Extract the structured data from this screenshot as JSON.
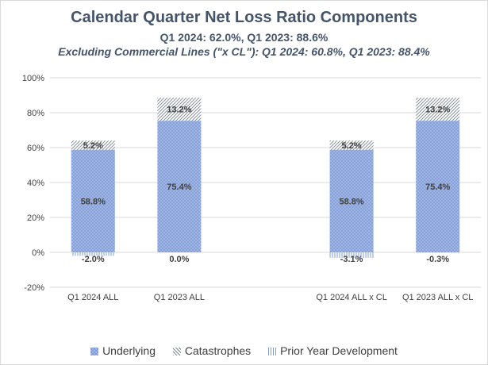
{
  "chart_data": {
    "type": "bar",
    "stacked": true,
    "title": "Calendar Quarter Net Loss Ratio Components",
    "subtitle": "Q1 2024: 62.0%, Q1 2023: 88.6%",
    "subtitle2": "Excluding Commercial Lines (\"x CL\"): Q1 2024: 60.8%, Q1 2023: 88.4%",
    "categories": [
      "Q1 2024 ALL",
      "Q1 2023 ALL",
      "",
      "Q1 2024 ALL x CL",
      "Q1 2023 ALL x CL"
    ],
    "series": [
      {
        "name": "Underlying",
        "values": [
          58.8,
          75.4,
          null,
          58.8,
          75.4
        ],
        "labels": [
          "58.8%",
          "75.4%",
          "",
          "58.8%",
          "75.4%"
        ]
      },
      {
        "name": "Catastrophes",
        "values": [
          5.2,
          13.2,
          null,
          5.2,
          13.2
        ],
        "labels": [
          "5.2%",
          "13.2%",
          "",
          "5.2%",
          "13.2%"
        ]
      },
      {
        "name": "Prior Year Development",
        "values": [
          -2.0,
          0.0,
          null,
          -3.1,
          -0.3
        ],
        "labels": [
          "-2.0%",
          "0.0%",
          "",
          "-3.1%",
          "-0.3%"
        ]
      }
    ],
    "yticks": [
      "100%",
      "80%",
      "60%",
      "40%",
      "20%",
      "0%",
      "-20%"
    ],
    "ylim": [
      -20,
      100
    ],
    "grid": true,
    "legend": "bottom",
    "colors": {
      "underlying": "#a9bce6",
      "underlying_hatch": "#7f9bd8",
      "catastrophes_hatch": "#7a8793",
      "pyd_hatch": "#7f9bd8",
      "title": "#44546a",
      "grid": "#d9d9d9",
      "label": "#404040"
    }
  }
}
